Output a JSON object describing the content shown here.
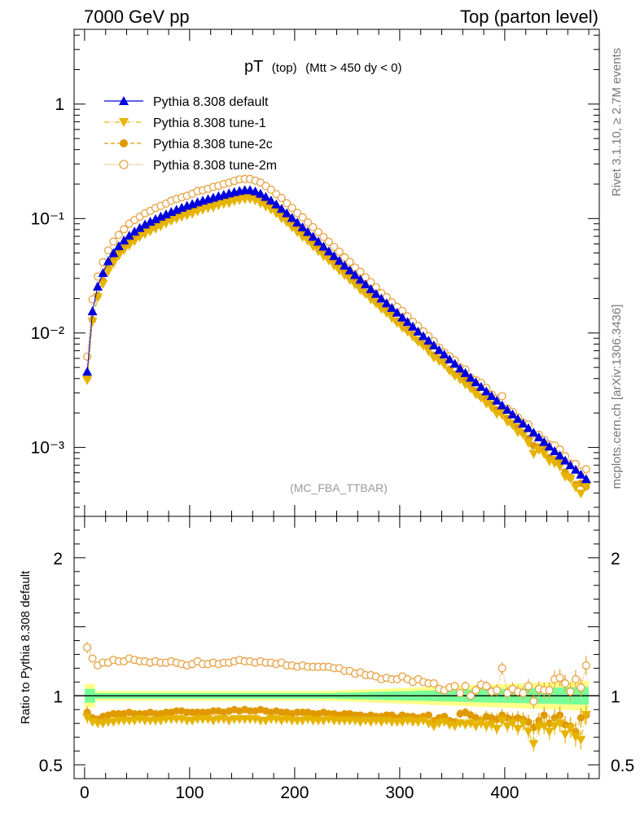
{
  "header": {
    "left": "7000 GeV pp",
    "right": "Top (parton level)"
  },
  "plot_title": {
    "main": "pT",
    "sub1": "(top)",
    "sub2": "(Mtt > 450 dy < 0)"
  },
  "watermark": "(MC_FBA_TTBAR)",
  "side_text": {
    "rivet": "Rivet 3.1.10, ≥ 2.7M events",
    "mcplots": "mcplots.cern.ch [arXiv:1306.3436]"
  },
  "ratio_ylabel": "Ratio to Pythia 8.308 default",
  "colors": {
    "default": "#0000dd",
    "tune1": "#e6b400",
    "tune2c": "#e09a00",
    "tune2m": "#e8a040",
    "band_yellow": "#ffff88",
    "band_green": "#77ff99"
  },
  "chart_data": [
    {
      "type": "scatter",
      "title": "pT (top) (Mtt > 450 dy < 0)",
      "xlabel": "",
      "ylabel": "",
      "xlim": [
        -10,
        490
      ],
      "ylim": [
        0.00025,
        4.5
      ],
      "yscale": "log",
      "y_ticks": [
        {
          "value": 1,
          "label": "1"
        },
        {
          "value": 0.1,
          "label": "10⁻¹"
        },
        {
          "value": 0.01,
          "label": "10⁻²"
        },
        {
          "value": 0.001,
          "label": "10⁻³"
        }
      ],
      "legend_position": "top-left",
      "series": [
        {
          "name": "Pythia 8.308 default",
          "marker": "triangle-up",
          "linestyle": "solid"
        },
        {
          "name": "Pythia 8.308 tune-1",
          "marker": "triangle-down",
          "linestyle": "dash-dot"
        },
        {
          "name": "Pythia 8.308 tune-2c",
          "marker": "circle",
          "linestyle": "dashed"
        },
        {
          "name": "Pythia 8.308 tune-2m",
          "marker": "open-circle",
          "linestyle": "dotted"
        }
      ],
      "x": [
        2.5,
        7.5,
        12.5,
        17.5,
        22.5,
        27.5,
        32.5,
        37.5,
        42.5,
        47.5,
        52.5,
        57.5,
        62.5,
        67.5,
        72.5,
        77.5,
        82.5,
        87.5,
        92.5,
        97.5,
        102.5,
        107.5,
        112.5,
        117.5,
        122.5,
        127.5,
        132.5,
        137.5,
        142.5,
        147.5,
        152.5,
        157.5,
        162.5,
        167.5,
        172.5,
        177.5,
        182.5,
        187.5,
        192.5,
        197.5,
        202.5,
        207.5,
        212.5,
        217.5,
        222.5,
        227.5,
        232.5,
        237.5,
        242.5,
        247.5,
        252.5,
        257.5,
        262.5,
        267.5,
        272.5,
        277.5,
        282.5,
        287.5,
        292.5,
        297.5,
        302.5,
        307.5,
        312.5,
        317.5,
        322.5,
        327.5,
        332.5,
        337.5,
        342.5,
        347.5,
        352.5,
        357.5,
        362.5,
        367.5,
        372.5,
        377.5,
        382.5,
        387.5,
        392.5,
        397.5,
        402.5,
        407.5,
        412.5,
        417.5,
        422.5,
        427.5,
        432.5,
        437.5,
        442.5,
        447.5,
        452.5,
        457.5,
        462.5,
        467.5,
        472.5,
        477.5
      ],
      "default_values": [
        0.0046,
        0.0155,
        0.0255,
        0.0335,
        0.0425,
        0.05,
        0.0575,
        0.0645,
        0.071,
        0.077,
        0.083,
        0.089,
        0.094,
        0.099,
        0.104,
        0.109,
        0.1145,
        0.1195,
        0.1245,
        0.1295,
        0.134,
        0.139,
        0.1435,
        0.148,
        0.1525,
        0.157,
        0.1615,
        0.166,
        0.1705,
        0.1745,
        0.1775,
        0.1775,
        0.173,
        0.165,
        0.155,
        0.144,
        0.133,
        0.122,
        0.1115,
        0.1015,
        0.0925,
        0.084,
        0.0765,
        0.0695,
        0.063,
        0.057,
        0.0518,
        0.0471,
        0.0428,
        0.0389,
        0.0354,
        0.0322,
        0.0293,
        0.0266,
        0.0242,
        0.022,
        0.02,
        0.0182,
        0.0166,
        0.0151,
        0.0137,
        0.0125,
        0.0114,
        0.0103,
        0.0094,
        0.0086,
        0.0078,
        0.0071,
        0.0065,
        0.0059,
        0.0054,
        0.0049,
        0.00448,
        0.00408,
        0.00372,
        0.00339,
        0.00309,
        0.00282,
        0.00257,
        0.00234,
        0.00214,
        0.00195,
        0.00178,
        0.00162,
        0.00148,
        0.00135,
        0.00123,
        0.00112,
        0.00102,
        0.00093,
        0.00085,
        0.00077,
        0.0007,
        0.00064,
        0.00058,
        0.00053
      ]
    },
    {
      "type": "scatter",
      "title": "",
      "xlabel": "",
      "ylabel": "Ratio to Pythia 8.308 default",
      "xlim": [
        -10,
        490
      ],
      "ylim": [
        0.4,
        2.3
      ],
      "x_ticks": [
        0,
        100,
        200,
        300,
        400
      ],
      "y_ticks": [
        {
          "value": 0.5,
          "label": "0.5"
        },
        {
          "value": 1,
          "label": "1"
        },
        {
          "value": 2,
          "label": "2"
        }
      ],
      "reference_line": 1,
      "ratio_tune1": [
        0.84,
        0.81,
        0.8,
        0.8,
        0.81,
        0.81,
        0.82,
        0.82,
        0.82,
        0.82,
        0.83,
        0.82,
        0.82,
        0.82,
        0.82,
        0.83,
        0.83,
        0.83,
        0.83,
        0.82,
        0.82,
        0.83,
        0.83,
        0.83,
        0.82,
        0.83,
        0.83,
        0.82,
        0.83,
        0.83,
        0.83,
        0.83,
        0.83,
        0.82,
        0.82,
        0.83,
        0.83,
        0.82,
        0.83,
        0.82,
        0.82,
        0.82,
        0.83,
        0.82,
        0.82,
        0.82,
        0.83,
        0.82,
        0.82,
        0.82,
        0.82,
        0.82,
        0.81,
        0.82,
        0.81,
        0.82,
        0.81,
        0.82,
        0.81,
        0.81,
        0.81,
        0.82,
        0.81,
        0.81,
        0.82,
        0.8,
        0.78,
        0.8,
        0.81,
        0.79,
        0.78,
        0.8,
        0.79,
        0.8,
        0.78,
        0.8,
        0.78,
        0.79,
        0.76,
        0.82,
        0.78,
        0.8,
        0.76,
        0.8,
        0.74,
        0.65,
        0.77,
        0.78,
        0.74,
        0.78,
        0.8,
        0.72,
        0.76,
        0.7,
        0.68,
        0.86
      ],
      "ratio_tune2c": [
        0.88,
        0.84,
        0.83,
        0.85,
        0.86,
        0.87,
        0.87,
        0.87,
        0.88,
        0.87,
        0.87,
        0.87,
        0.88,
        0.87,
        0.87,
        0.88,
        0.88,
        0.89,
        0.89,
        0.88,
        0.88,
        0.88,
        0.88,
        0.88,
        0.89,
        0.89,
        0.88,
        0.89,
        0.9,
        0.89,
        0.9,
        0.89,
        0.89,
        0.9,
        0.89,
        0.88,
        0.89,
        0.88,
        0.88,
        0.87,
        0.88,
        0.88,
        0.88,
        0.87,
        0.87,
        0.88,
        0.87,
        0.87,
        0.86,
        0.87,
        0.87,
        0.86,
        0.86,
        0.85,
        0.86,
        0.85,
        0.85,
        0.86,
        0.86,
        0.84,
        0.86,
        0.85,
        0.85,
        0.84,
        0.85,
        0.86,
        0.82,
        0.84,
        0.85,
        0.82,
        0.81,
        0.87,
        0.88,
        0.86,
        0.84,
        0.82,
        0.85,
        0.84,
        0.83,
        0.86,
        0.84,
        0.83,
        0.84,
        0.83,
        0.81,
        0.77,
        0.82,
        0.86,
        0.8,
        0.84,
        0.86,
        0.79,
        0.78,
        0.74,
        0.84,
        0.86
      ],
      "ratio_tune2m": [
        1.35,
        1.27,
        1.22,
        1.24,
        1.24,
        1.26,
        1.25,
        1.25,
        1.27,
        1.26,
        1.25,
        1.25,
        1.24,
        1.25,
        1.24,
        1.24,
        1.25,
        1.24,
        1.23,
        1.22,
        1.23,
        1.25,
        1.23,
        1.23,
        1.24,
        1.23,
        1.24,
        1.24,
        1.25,
        1.26,
        1.25,
        1.25,
        1.24,
        1.25,
        1.24,
        1.24,
        1.23,
        1.24,
        1.22,
        1.22,
        1.21,
        1.22,
        1.21,
        1.21,
        1.21,
        1.21,
        1.21,
        1.2,
        1.2,
        1.18,
        1.18,
        1.16,
        1.17,
        1.15,
        1.15,
        1.14,
        1.12,
        1.13,
        1.12,
        1.12,
        1.14,
        1.12,
        1.1,
        1.12,
        1.1,
        1.09,
        1.09,
        1.05,
        1.04,
        1.06,
        1.07,
        1.02,
        1.07,
        1.0,
        1.04,
        1.08,
        1.07,
        1.03,
        1.04,
        1.2,
        1.02,
        1.05,
        1.03,
        1.02,
        1.07,
        0.96,
        1.05,
        1.04,
        1.04,
        1.12,
        1.13,
        1.09,
        1.03,
        1.12,
        1.06,
        1.22
      ]
    }
  ]
}
